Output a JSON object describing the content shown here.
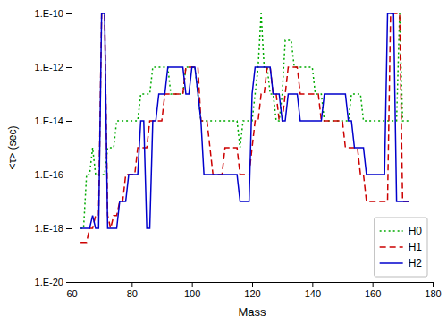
{
  "chart_data": {
    "type": "line",
    "xlabel": "Mass",
    "ylabel": "<τ> (sec)",
    "log": "y",
    "grid": false,
    "legend": "lower right",
    "xlim": [
      60,
      180
    ],
    "ylim": [
      1e-20,
      1e-10
    ],
    "xticks": [
      60,
      80,
      100,
      120,
      140,
      160,
      180
    ],
    "yticks": [
      {
        "value": 1e-20,
        "label": "1.E-20"
      },
      {
        "value": 1e-18,
        "label": "1.E-18"
      },
      {
        "value": 1e-16,
        "label": "1.E-16"
      },
      {
        "value": 1e-14,
        "label": "1.E-14"
      },
      {
        "value": 1e-12,
        "label": "1.E-12"
      },
      {
        "value": 1e-10,
        "label": "1.E-10"
      }
    ],
    "x": [
      63,
      64,
      65,
      66,
      67,
      68,
      69,
      70,
      71,
      72,
      73,
      74,
      75,
      76,
      77,
      78,
      79,
      80,
      81,
      82,
      83,
      84,
      85,
      86,
      87,
      88,
      89,
      90,
      91,
      92,
      93,
      94,
      95,
      96,
      97,
      98,
      99,
      100,
      101,
      102,
      103,
      104,
      105,
      106,
      107,
      108,
      109,
      110,
      111,
      112,
      113,
      114,
      115,
      116,
      117,
      118,
      119,
      120,
      121,
      122,
      123,
      124,
      125,
      126,
      127,
      128,
      129,
      130,
      131,
      132,
      133,
      134,
      135,
      136,
      137,
      138,
      139,
      140,
      141,
      142,
      143,
      144,
      145,
      146,
      147,
      148,
      149,
      150,
      151,
      152,
      153,
      154,
      155,
      156,
      157,
      158,
      159,
      160,
      161,
      162,
      163,
      164,
      165,
      166,
      167,
      168,
      169,
      170,
      171,
      172
    ],
    "series": [
      {
        "name": "H0",
        "color": "#00aa00",
        "line_style": "dotted",
        "values": [
          1e-18,
          1e-18,
          1e-16,
          1e-16,
          1e-15,
          1e-16,
          1e-16,
          1e-16,
          1e-16,
          1e-15,
          1e-15,
          1e-15,
          1e-14,
          1e-14,
          1e-14,
          1e-14,
          1e-14,
          1e-14,
          1e-14,
          1e-14,
          1e-13,
          1e-13,
          1e-13,
          1e-13,
          1e-12,
          1e-12,
          1e-12,
          1e-12,
          1e-12,
          1e-12,
          1e-13,
          1e-13,
          1e-13,
          1e-13,
          1e-13,
          1e-12,
          1e-12,
          1e-12,
          1e-12,
          1e-13,
          1e-14,
          1e-14,
          1e-14,
          1e-14,
          1e-14,
          1e-14,
          1e-14,
          1e-14,
          1e-14,
          1e-14,
          1e-14,
          1e-14,
          1e-14,
          1e-15,
          1e-14,
          1e-14,
          1e-14,
          1e-14,
          1e-13,
          1e-12,
          1e-10,
          1e-12,
          1e-12,
          1e-13,
          1e-13,
          1e-14,
          1e-14,
          1e-13,
          1e-11,
          1e-11,
          1e-11,
          1e-12,
          1e-12,
          1e-12,
          1e-12,
          1e-12,
          1e-12,
          1e-12,
          1e-13,
          1e-13,
          1e-13,
          1e-14,
          1e-14,
          1e-14,
          1e-14,
          1e-14,
          1e-14,
          1e-14,
          1e-14,
          1e-14,
          1e-13,
          1e-13,
          1e-13,
          1e-13,
          1e-14,
          1e-14,
          1e-14,
          1e-14,
          1e-14,
          1e-14,
          1e-14,
          1e-14,
          1e-14,
          1e-14,
          1e-14,
          1e-14,
          1e-10,
          1e-14,
          1e-14,
          1e-14
        ]
      },
      {
        "name": "H1",
        "color": "#cc0000",
        "line_style": "dashed",
        "values": [
          3e-19,
          3e-19,
          3e-19,
          1e-18,
          1e-18,
          3e-18,
          3e-18,
          1e-10,
          1e-10,
          3e-18,
          1e-18,
          3e-18,
          3e-18,
          1e-17,
          1e-17,
          1e-16,
          1e-16,
          1e-16,
          1e-16,
          1e-15,
          1e-15,
          1e-15,
          1e-15,
          1e-14,
          1e-14,
          1e-14,
          1e-14,
          1e-14,
          1e-13,
          1e-13,
          1e-13,
          1e-13,
          1e-13,
          1e-13,
          1e-13,
          1e-12,
          1e-12,
          1e-12,
          1e-12,
          1e-12,
          1e-14,
          1e-14,
          1e-14,
          1e-15,
          1e-16,
          1e-16,
          1e-16,
          1e-16,
          1e-15,
          1e-15,
          1e-15,
          1e-15,
          1e-15,
          1e-16,
          1e-16,
          1e-16,
          1e-16,
          1e-15,
          1e-14,
          1e-14,
          1e-13,
          1e-13,
          1e-12,
          1e-12,
          1e-13,
          1e-13,
          1e-14,
          1e-14,
          1e-13,
          1e-12,
          1e-12,
          1e-12,
          1e-12,
          1e-13,
          1e-13,
          1e-13,
          1e-13,
          1e-13,
          1e-13,
          1e-13,
          1e-14,
          1e-14,
          1e-14,
          1e-14,
          1e-14,
          1e-14,
          1e-14,
          1e-14,
          1e-15,
          1e-15,
          1e-15,
          1e-15,
          1e-15,
          1e-16,
          1e-16,
          1e-17,
          1e-17,
          1e-17,
          1e-17,
          1e-17,
          1e-17,
          1e-17,
          1e-17,
          1e-10,
          1e-10,
          1e-10,
          1e-10,
          1e-17,
          1e-17,
          1e-17
        ]
      },
      {
        "name": "H2",
        "color": "#0000cc",
        "line_style": "solid",
        "values": [
          1e-18,
          1e-18,
          1e-18,
          1e-18,
          3e-18,
          1e-18,
          1e-18,
          1e-10,
          1e-10,
          1e-18,
          1e-18,
          1e-18,
          1e-18,
          1e-17,
          1e-17,
          1e-17,
          1e-16,
          1e-16,
          1e-16,
          1e-16,
          1e-14,
          1e-14,
          1e-18,
          1e-18,
          1e-14,
          1e-14,
          1e-13,
          1e-13,
          1e-13,
          1e-12,
          1e-12,
          1e-12,
          1e-12,
          1e-12,
          1e-12,
          1e-13,
          1e-13,
          1e-12,
          1e-12,
          1e-13,
          1e-14,
          1e-16,
          1e-16,
          1e-16,
          1e-16,
          1e-16,
          1e-16,
          1e-16,
          1e-16,
          1e-16,
          1e-16,
          1e-16,
          1e-16,
          1e-17,
          1e-17,
          1e-17,
          1e-17,
          1e-13,
          1e-12,
          1e-12,
          1e-12,
          1e-12,
          1e-12,
          1e-12,
          1e-13,
          1e-13,
          1e-13,
          1e-14,
          1e-14,
          1e-13,
          1e-13,
          1e-13,
          1e-13,
          1e-14,
          1e-14,
          1e-14,
          1e-14,
          1e-14,
          1e-14,
          1e-14,
          1e-14,
          1e-13,
          1e-13,
          1e-13,
          1e-13,
          1e-13,
          1e-13,
          1e-13,
          1e-13,
          1e-14,
          1e-14,
          1e-15,
          1e-15,
          1e-15,
          1e-15,
          1e-16,
          1e-16,
          1e-16,
          1e-16,
          1e-16,
          1e-16,
          1e-16,
          1e-10,
          1e-10,
          1e-10,
          1e-17,
          1e-17,
          1e-17,
          1e-17,
          1e-17
        ]
      }
    ]
  }
}
